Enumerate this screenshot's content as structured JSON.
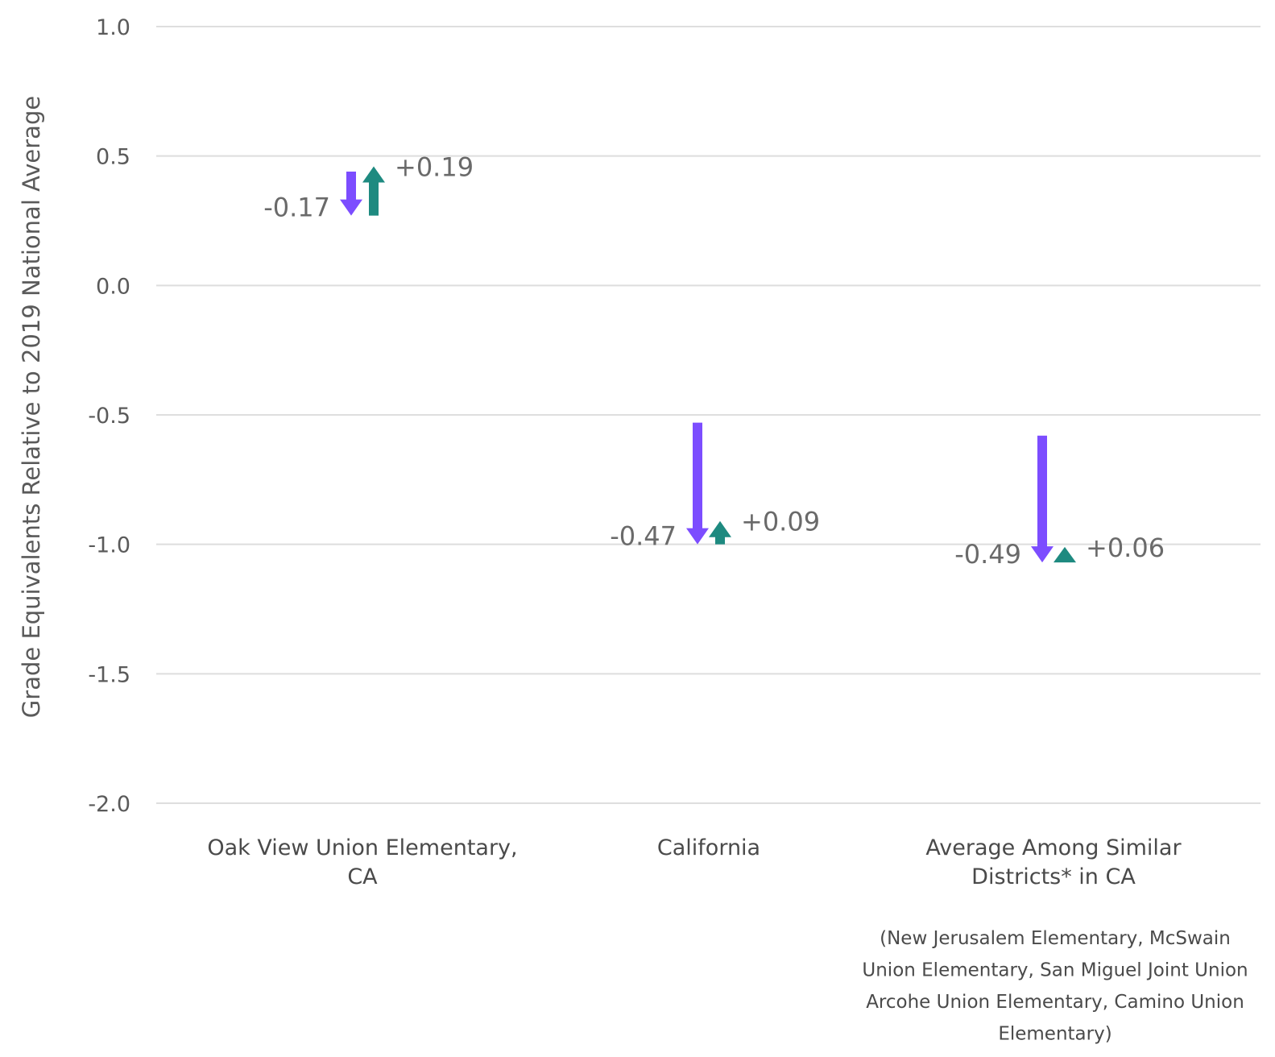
{
  "chart_data": {
    "type": "arrow",
    "ylabel": "Grade Equivalents Relative to 2019 National Average",
    "xlabel": "",
    "ylim": [
      -2.0,
      1.0
    ],
    "yticks": [
      "1.0",
      "0.5",
      "0.0",
      "-0.5",
      "-1.0",
      "-1.5",
      "-2.0"
    ],
    "grid": true,
    "colors": {
      "decline": "#7c4dff",
      "recovery": "#1e8a80"
    },
    "categories": [
      {
        "label_lines": [
          "Oak View Union Elementary,",
          "CA"
        ],
        "start": 0.44,
        "decline": -0.17,
        "recovery": 0.19,
        "decline_label": "-0.17",
        "recovery_label": "+0.19"
      },
      {
        "label_lines": [
          "California"
        ],
        "start": -0.53,
        "decline": -0.47,
        "recovery": 0.09,
        "decline_label": "-0.47",
        "recovery_label": "+0.09"
      },
      {
        "label_lines": [
          "Average Among Similar",
          "Districts* in CA"
        ],
        "start": -0.58,
        "decline": -0.49,
        "recovery": 0.06,
        "decline_label": "-0.49",
        "recovery_label": "+0.06"
      }
    ],
    "footnote_lines": [
      "(New Jerusalem Elementary, McSwain",
      "Union Elementary, San Miguel Joint Union",
      "Arcohe Union Elementary, Camino Union",
      "Elementary)"
    ]
  }
}
